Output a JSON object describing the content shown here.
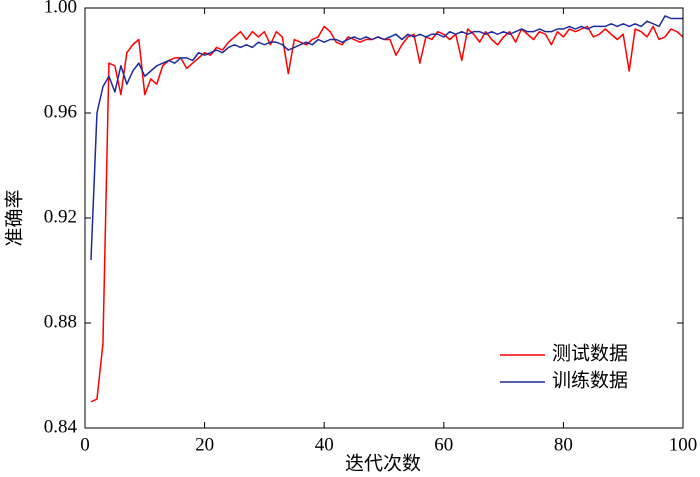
{
  "chart_data": {
    "type": "line",
    "x_label": "迭代次数",
    "y_label": "准确率",
    "x": [
      1,
      2,
      3,
      4,
      5,
      6,
      7,
      8,
      9,
      10,
      11,
      12,
      13,
      14,
      15,
      16,
      17,
      18,
      19,
      20,
      21,
      22,
      23,
      24,
      25,
      26,
      27,
      28,
      29,
      30,
      31,
      32,
      33,
      34,
      35,
      36,
      37,
      38,
      39,
      40,
      41,
      42,
      43,
      44,
      45,
      46,
      47,
      48,
      49,
      50,
      51,
      52,
      53,
      54,
      55,
      56,
      57,
      58,
      59,
      60,
      61,
      62,
      63,
      64,
      65,
      66,
      67,
      68,
      69,
      70,
      71,
      72,
      73,
      74,
      75,
      76,
      77,
      78,
      79,
      80,
      81,
      82,
      83,
      84,
      85,
      86,
      87,
      88,
      89,
      90,
      91,
      92,
      93,
      94,
      95,
      96,
      97,
      98,
      99,
      100
    ],
    "series": [
      {
        "name": "测试数据",
        "color": "#ff0000",
        "values": [
          0.85,
          0.851,
          0.872,
          0.979,
          0.978,
          0.967,
          0.983,
          0.986,
          0.988,
          0.967,
          0.973,
          0.971,
          0.978,
          0.98,
          0.981,
          0.981,
          0.977,
          0.979,
          0.981,
          0.983,
          0.982,
          0.985,
          0.984,
          0.987,
          0.989,
          0.991,
          0.988,
          0.991,
          0.989,
          0.991,
          0.986,
          0.991,
          0.989,
          0.975,
          0.988,
          0.987,
          0.986,
          0.988,
          0.989,
          0.993,
          0.991,
          0.987,
          0.986,
          0.989,
          0.988,
          0.987,
          0.988,
          0.988,
          0.989,
          0.988,
          0.988,
          0.982,
          0.986,
          0.989,
          0.99,
          0.979,
          0.989,
          0.988,
          0.991,
          0.99,
          0.988,
          0.99,
          0.98,
          0.992,
          0.99,
          0.987,
          0.991,
          0.988,
          0.986,
          0.989,
          0.991,
          0.987,
          0.992,
          0.99,
          0.988,
          0.991,
          0.99,
          0.986,
          0.991,
          0.989,
          0.992,
          0.991,
          0.992,
          0.993,
          0.989,
          0.99,
          0.992,
          0.99,
          0.988,
          0.99,
          0.976,
          0.992,
          0.991,
          0.989,
          0.993,
          0.988,
          0.989,
          0.992,
          0.991,
          0.989
        ]
      },
      {
        "name": "训练数据",
        "color": "#1c2a9c",
        "values": [
          0.904,
          0.96,
          0.97,
          0.974,
          0.968,
          0.978,
          0.971,
          0.976,
          0.979,
          0.974,
          0.976,
          0.978,
          0.979,
          0.98,
          0.979,
          0.981,
          0.981,
          0.98,
          0.983,
          0.982,
          0.983,
          0.984,
          0.983,
          0.985,
          0.986,
          0.985,
          0.986,
          0.985,
          0.987,
          0.986,
          0.987,
          0.987,
          0.986,
          0.984,
          0.985,
          0.986,
          0.987,
          0.986,
          0.988,
          0.987,
          0.988,
          0.988,
          0.987,
          0.988,
          0.989,
          0.988,
          0.989,
          0.988,
          0.989,
          0.988,
          0.989,
          0.99,
          0.988,
          0.99,
          0.989,
          0.99,
          0.989,
          0.99,
          0.99,
          0.989,
          0.991,
          0.99,
          0.991,
          0.99,
          0.991,
          0.991,
          0.99,
          0.991,
          0.99,
          0.991,
          0.99,
          0.991,
          0.992,
          0.991,
          0.991,
          0.992,
          0.991,
          0.991,
          0.992,
          0.992,
          0.993,
          0.992,
          0.993,
          0.992,
          0.993,
          0.993,
          0.993,
          0.994,
          0.993,
          0.994,
          0.993,
          0.994,
          0.993,
          0.995,
          0.994,
          0.993,
          0.997,
          0.996,
          0.996,
          0.996
        ]
      }
    ],
    "xlim": [
      0,
      100
    ],
    "xticks": [
      0,
      20,
      40,
      60,
      80,
      100
    ],
    "ylim": [
      0.84,
      1
    ],
    "yticks": [
      0.84,
      0.88,
      0.92,
      0.96,
      {
        "value": 1,
        "label": "1.00"
      }
    ],
    "legend": "lower right"
  }
}
